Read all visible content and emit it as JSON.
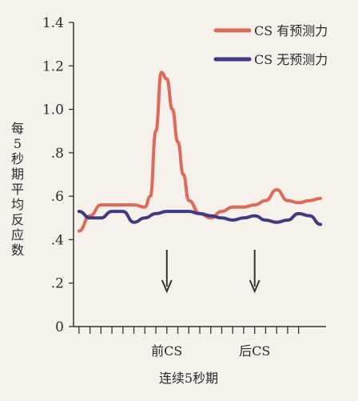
{
  "chart_data": {
    "type": "line",
    "title": "",
    "xlabel": "连续5秒期",
    "ylabel": "每5秒期平均反应数",
    "ylim": [
      0,
      1.4
    ],
    "yticks": [
      {
        "value": 0,
        "label": "0"
      },
      {
        "value": 0.2,
        "label": ".2"
      },
      {
        "value": 0.4,
        "label": ".4"
      },
      {
        "value": 0.6,
        "label": ".6"
      },
      {
        "value": 0.8,
        "label": ".8"
      },
      {
        "value": 1.0,
        "label": "1.0"
      },
      {
        "value": 1.2,
        "label": "1.2"
      },
      {
        "value": 1.4,
        "label": "1.4"
      }
    ],
    "x_ticks_count": 20,
    "annotations": [
      {
        "label": "前CS",
        "x": 8.5
      },
      {
        "label": "后CS",
        "x": 16.5
      }
    ],
    "legend_position": "top-right",
    "grid": false,
    "series": [
      {
        "name": "CS 有预测力",
        "color": "#e06a5a",
        "x": [
          0.5,
          1.5,
          2.5,
          3.5,
          4.5,
          5.5,
          6.5,
          7.0,
          7.5,
          8.0,
          8.5,
          9.0,
          9.5,
          10.0,
          10.5,
          11.5,
          12.5,
          13.5,
          14.5,
          15.5,
          16.5,
          17.5,
          18.5,
          19.5,
          20.5,
          21.5,
          22.5
        ],
        "values": [
          0.44,
          0.51,
          0.56,
          0.56,
          0.56,
          0.56,
          0.55,
          0.6,
          0.9,
          1.17,
          1.14,
          1.0,
          0.85,
          0.7,
          0.58,
          0.52,
          0.5,
          0.53,
          0.55,
          0.55,
          0.56,
          0.58,
          0.63,
          0.58,
          0.57,
          0.58,
          0.59
        ]
      },
      {
        "name": "CS 无预测力",
        "color": "#3f3a82",
        "x": [
          0.5,
          1.5,
          2.5,
          3.5,
          4.5,
          5.5,
          6.5,
          7.5,
          8.5,
          9.5,
          10.5,
          11.5,
          12.5,
          13.5,
          14.5,
          15.5,
          16.5,
          17.5,
          18.5,
          19.5,
          20.5,
          21.5,
          22.5
        ],
        "values": [
          0.53,
          0.5,
          0.5,
          0.53,
          0.53,
          0.48,
          0.5,
          0.52,
          0.53,
          0.53,
          0.53,
          0.52,
          0.51,
          0.5,
          0.49,
          0.5,
          0.51,
          0.49,
          0.48,
          0.49,
          0.52,
          0.51,
          0.47
        ]
      }
    ]
  }
}
